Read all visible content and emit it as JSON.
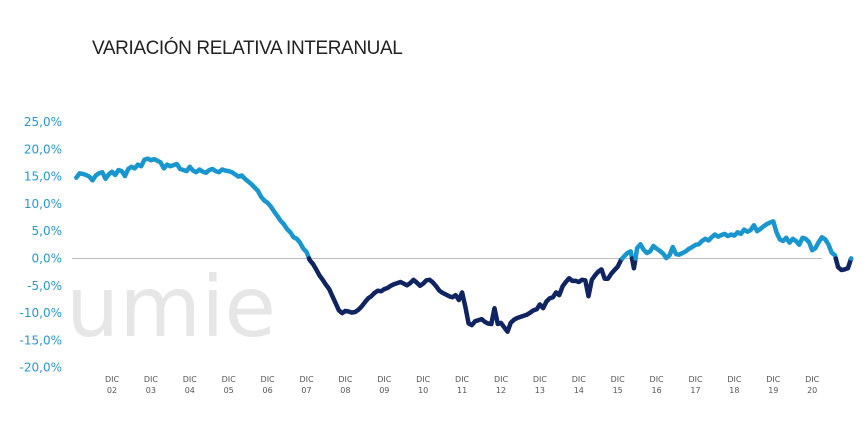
{
  "chart_data": {
    "type": "line",
    "title": "VARIACIÓN RELATIVA INTERANUAL",
    "xlabel": "",
    "ylabel": "",
    "ylim": [
      -20,
      25
    ],
    "yticks": [
      "25,0%",
      "20,0%",
      "15,0%",
      "10,0%",
      "5,0%",
      "0,0%",
      "-5,0%",
      "-10,0%",
      "-15,0%",
      "-20,0%"
    ],
    "ytick_values": [
      25,
      20,
      15,
      10,
      5,
      0,
      -5,
      -10,
      -15,
      -20
    ],
    "xticks": [
      {
        "top": "DIC",
        "bottom": "02"
      },
      {
        "top": "DIC",
        "bottom": "03"
      },
      {
        "top": "DIC",
        "bottom": "04"
      },
      {
        "top": "DIC",
        "bottom": "05"
      },
      {
        "top": "DIC",
        "bottom": "06"
      },
      {
        "top": "DIC",
        "bottom": "07"
      },
      {
        "top": "DIC",
        "bottom": "08"
      },
      {
        "top": "DIC",
        "bottom": "09"
      },
      {
        "top": "DIC",
        "bottom": "10"
      },
      {
        "top": "DIC",
        "bottom": "11"
      },
      {
        "top": "DIC",
        "bottom": "12"
      },
      {
        "top": "DIC",
        "bottom": "13"
      },
      {
        "top": "DIC",
        "bottom": "14"
      },
      {
        "top": "DIC",
        "bottom": "15"
      },
      {
        "top": "DIC",
        "bottom": "16"
      },
      {
        "top": "DIC",
        "bottom": "17"
      },
      {
        "top": "DIC",
        "bottom": "18"
      },
      {
        "top": "DIC",
        "bottom": "19"
      },
      {
        "top": "DIC",
        "bottom": "20"
      }
    ],
    "x_unit": "months since Dec 2002 (tick n = Dec of year 2002+n)",
    "grid": false,
    "zero_line": true,
    "positive_color": "#1a96cf",
    "negative_color": "#0f2461",
    "series": [
      {
        "name": "Variación relativa interanual",
        "x_start": -11,
        "values": [
          14.8,
          15.6,
          15.5,
          15.3,
          15.0,
          14.3,
          15.2,
          15.6,
          15.8,
          14.6,
          15.4,
          15.9,
          15.3,
          16.2,
          16.0,
          15.1,
          16.4,
          16.8,
          16.5,
          17.2,
          16.9,
          18.1,
          18.3,
          18.0,
          18.2,
          17.9,
          17.6,
          16.5,
          17.2,
          16.9,
          17.1,
          17.3,
          16.4,
          16.2,
          16.0,
          16.8,
          16.1,
          15.8,
          16.3,
          15.9,
          15.7,
          16.2,
          16.4,
          16.0,
          15.8,
          16.3,
          16.1,
          16.0,
          15.8,
          15.4,
          15.0,
          15.2,
          14.6,
          14.1,
          13.6,
          13.0,
          12.4,
          11.3,
          10.6,
          10.2,
          9.5,
          8.6,
          7.8,
          6.9,
          6.3,
          5.4,
          4.8,
          3.9,
          3.6,
          2.9,
          1.8,
          1.2,
          -0.3,
          -1.0,
          -2.0,
          -3.1,
          -3.9,
          -4.8,
          -5.6,
          -6.9,
          -8.2,
          -9.5,
          -10.0,
          -9.6,
          -9.7,
          -9.9,
          -9.8,
          -9.4,
          -8.8,
          -8.0,
          -7.3,
          -6.9,
          -6.3,
          -5.9,
          -6.0,
          -5.6,
          -5.4,
          -5.0,
          -4.7,
          -4.5,
          -4.3,
          -4.6,
          -4.9,
          -4.5,
          -3.9,
          -4.4,
          -5.0,
          -4.6,
          -4.0,
          -3.9,
          -4.4,
          -5.1,
          -5.9,
          -6.3,
          -6.6,
          -6.9,
          -7.1,
          -6.7,
          -7.6,
          -6.2,
          -8.8,
          -11.9,
          -12.2,
          -11.5,
          -11.3,
          -11.1,
          -11.6,
          -11.9,
          -12.0,
          -9.1,
          -12.0,
          -11.8,
          -12.6,
          -13.4,
          -11.8,
          -11.2,
          -10.9,
          -10.7,
          -10.5,
          -10.3,
          -9.9,
          -9.5,
          -9.3,
          -8.4,
          -9.1,
          -7.9,
          -7.3,
          -7.1,
          -6.2,
          -6.7,
          -5.1,
          -4.3,
          -3.6,
          -4.1,
          -4.1,
          -4.3,
          -3.9,
          -4.0,
          -6.9,
          -3.9,
          -3.1,
          -2.4,
          -2.0,
          -3.7,
          -3.7,
          -2.8,
          -2.1,
          -1.5,
          -0.3,
          0.4,
          1.0,
          1.3,
          -1.8,
          1.9,
          2.6,
          1.6,
          1.0,
          1.3,
          2.3,
          1.8,
          1.4,
          0.9,
          0.1,
          0.6,
          2.1,
          0.8,
          0.7,
          1.0,
          1.3,
          1.8,
          2.1,
          2.5,
          2.6,
          3.2,
          3.6,
          3.3,
          3.9,
          4.4,
          4.0,
          4.3,
          4.5,
          4.1,
          4.4,
          4.2,
          4.8,
          4.5,
          5.3,
          4.9,
          5.2,
          6.1,
          5.0,
          5.4,
          5.9,
          6.3,
          6.6,
          6.8,
          4.8,
          3.5,
          3.2,
          3.8,
          2.9,
          3.6,
          3.2,
          2.5,
          3.8,
          3.6,
          3.0,
          1.5,
          1.9,
          3.0,
          3.9,
          3.5,
          2.6,
          1.1,
          0.6,
          -1.6,
          -2.1,
          -2.0,
          -1.8,
          0.0
        ]
      }
    ]
  },
  "watermark": "umie"
}
